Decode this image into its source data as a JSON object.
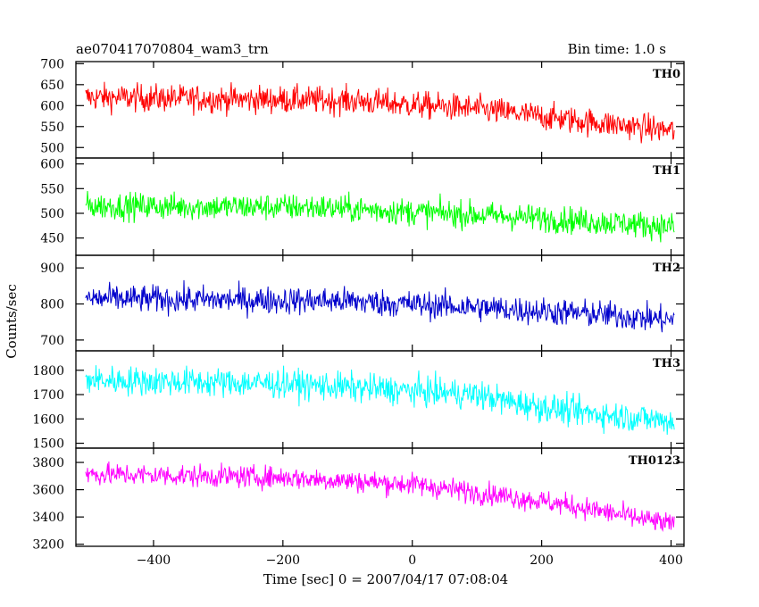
{
  "header": {
    "title": "ae070417070804_wam3_trn",
    "bin_time": "Bin time: 1.0 s"
  },
  "chart_data": {
    "type": "line",
    "title": "ae070417070804_wam3_trn",
    "xlabel": "Time [sec] 0 = 2007/04/17 07:08:04",
    "ylabel": "Counts/sec",
    "xlim": [
      -520,
      420
    ],
    "x_ticks": [
      -400,
      -200,
      0,
      200,
      400
    ],
    "x_tick_labels": [
      "−400",
      "−200",
      "0",
      "200",
      "400"
    ],
    "x_range_data": [
      -505,
      405
    ],
    "grid": false,
    "panels": [
      {
        "name": "TH0",
        "color": "#ff0000",
        "ylim": [
          475,
          705
        ],
        "y_ticks": [
          500,
          550,
          600,
          650,
          700
        ],
        "trend": [
          [
            -505,
            620
          ],
          [
            -100,
            612
          ],
          [
            100,
            592
          ],
          [
            250,
            565
          ],
          [
            405,
            540
          ]
        ],
        "noise": 30
      },
      {
        "name": "TH1",
        "color": "#00ff00",
        "ylim": [
          415,
          612
        ],
        "y_ticks": [
          450,
          500,
          550,
          600
        ],
        "trend": [
          [
            -505,
            515
          ],
          [
            -150,
            512
          ],
          [
            50,
            500
          ],
          [
            200,
            490
          ],
          [
            405,
            473
          ]
        ],
        "noise": 25
      },
      {
        "name": "TH2",
        "color": "#0000cc",
        "ylim": [
          670,
          935
        ],
        "y_ticks": [
          700,
          800,
          900
        ],
        "trend": [
          [
            -505,
            815
          ],
          [
            -100,
            808
          ],
          [
            100,
            790
          ],
          [
            300,
            770
          ],
          [
            405,
            755
          ]
        ],
        "noise": 35
      },
      {
        "name": "TH3",
        "color": "#00ffff",
        "ylim": [
          1480,
          1880
        ],
        "y_ticks": [
          1500,
          1600,
          1700,
          1800
        ],
        "trend": [
          [
            -505,
            1760
          ],
          [
            -200,
            1745
          ],
          [
            100,
            1700
          ],
          [
            150,
            1670
          ],
          [
            250,
            1630
          ],
          [
            405,
            1590
          ]
        ],
        "noise": 55
      },
      {
        "name": "TH0123",
        "color": "#ff00ff",
        "ylim": [
          3185,
          3905
        ],
        "y_ticks": [
          3200,
          3400,
          3600,
          3800
        ],
        "trend": [
          [
            -505,
            3715
          ],
          [
            -200,
            3690
          ],
          [
            0,
            3640
          ],
          [
            150,
            3550
          ],
          [
            250,
            3480
          ],
          [
            405,
            3340
          ]
        ],
        "noise": 75
      }
    ]
  }
}
